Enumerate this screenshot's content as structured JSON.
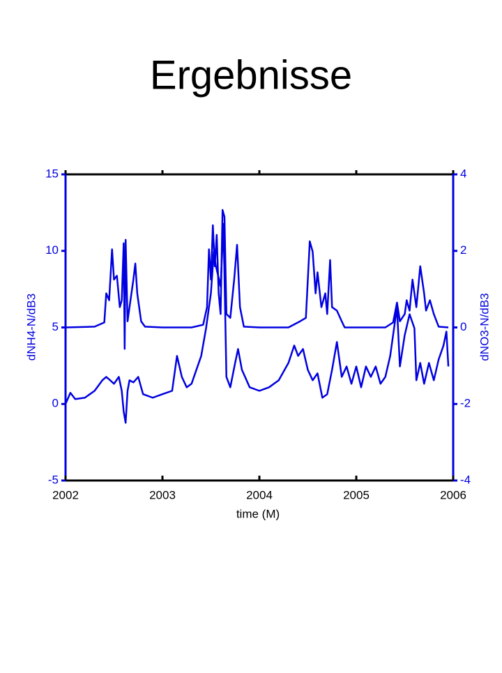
{
  "chart_data": {
    "type": "line",
    "title": "Ergebnisse",
    "xlabel": "time (M)",
    "ylabel": "dNH4-N/dB3",
    "y2label": "dNO3-N/dB3",
    "xlim": [
      2002,
      2006
    ],
    "xticks": [
      2002,
      2003,
      2004,
      2005,
      2006
    ],
    "ylim": [
      -5,
      15
    ],
    "yticks": [
      -5,
      0,
      5,
      10,
      15
    ],
    "y2lim": [
      -4,
      4
    ],
    "y2ticks": [
      -4,
      -2,
      0,
      2,
      4
    ],
    "series": [
      {
        "color": "#0000e0",
        "axis": "y2",
        "x": [
          2002.0,
          2002.3,
          2002.4,
          2002.42,
          2002.45,
          2002.48,
          2002.5,
          2002.53,
          2002.56,
          2002.58,
          2002.6,
          2002.61,
          2002.62,
          2002.64,
          2002.66,
          2002.7,
          2002.72,
          2002.74,
          2002.78,
          2002.82,
          2003.0,
          2003.3,
          2003.42,
          2003.46,
          2003.48,
          2003.5,
          2003.52,
          2003.54,
          2003.56,
          2003.58,
          2003.6,
          2003.62,
          2003.64,
          2003.66,
          2003.7,
          2003.74,
          2003.77,
          2003.8,
          2003.84,
          2004.0,
          2004.3,
          2004.42,
          2004.48,
          2004.52,
          2004.55,
          2004.58,
          2004.6,
          2004.64,
          2004.68,
          2004.7,
          2004.73,
          2004.75,
          2004.8,
          2004.85,
          2004.88,
          2005.0,
          2005.3,
          2005.38,
          2005.42,
          2005.45,
          2005.5,
          2005.52,
          2005.55,
          2005.58,
          2005.6,
          2005.62,
          2005.66,
          2005.7,
          2005.72,
          2005.76,
          2005.8,
          2005.85,
          2005.95
        ],
        "values": [
          0,
          0.02,
          0.13,
          0.89,
          0.71,
          2.04,
          1.25,
          1.35,
          0.53,
          0.71,
          2.2,
          -0.56,
          2.29,
          0.16,
          0.53,
          1.25,
          1.67,
          0.89,
          0.16,
          0.02,
          0,
          0,
          0.07,
          0.53,
          2.04,
          1.25,
          2.67,
          1.6,
          2.42,
          0.89,
          0.35,
          3.07,
          2.89,
          0.35,
          0.25,
          1.25,
          2.16,
          0.53,
          0.02,
          0,
          0,
          0.16,
          0.25,
          2.25,
          1.98,
          0.89,
          1.44,
          0.53,
          0.89,
          0.35,
          1.76,
          0.53,
          0.44,
          0.16,
          0,
          0,
          0,
          0.13,
          0.65,
          0.16,
          0.35,
          0.71,
          0.44,
          1.25,
          0.89,
          0.53,
          1.6,
          0.89,
          0.44,
          0.71,
          0.35,
          0.02,
          0
        ]
      },
      {
        "color": "#0000e0",
        "x": [
          2002.0,
          2002.05,
          2002.1,
          2002.2,
          2002.3,
          2002.38,
          2002.42,
          2002.46,
          2002.5,
          2002.55,
          2002.58,
          2002.6,
          2002.62,
          2002.64,
          2002.66,
          2002.7,
          2002.75,
          2002.8,
          2002.9,
          2003.0,
          2003.1,
          2003.15,
          2003.2,
          2003.25,
          2003.3,
          2003.35,
          2003.4,
          2003.45,
          2003.5,
          2003.53,
          2003.55,
          2003.6,
          2003.63,
          2003.66,
          2003.7,
          2003.75,
          2003.78,
          2003.82,
          2003.9,
          2004.0,
          2004.1,
          2004.2,
          2004.3,
          2004.36,
          2004.4,
          2004.45,
          2004.5,
          2004.55,
          2004.6,
          2004.65,
          2004.7,
          2004.75,
          2004.8,
          2004.85,
          2004.9,
          2004.95,
          2005.0,
          2005.05,
          2005.1,
          2005.15,
          2005.2,
          2005.25,
          2005.3,
          2005.35,
          2005.4,
          2005.42,
          2005.45,
          2005.5,
          2005.55,
          2005.6,
          2005.62,
          2005.66,
          2005.7,
          2005.75,
          2005.8,
          2005.85,
          2005.9,
          2005.93,
          2005.95
        ],
        "values": [
          0,
          0.73,
          0.32,
          0.41,
          0.86,
          1.55,
          1.77,
          1.55,
          1.32,
          1.77,
          0.86,
          -0.5,
          -1.23,
          0.86,
          1.55,
          1.41,
          1.77,
          0.64,
          0.41,
          0.64,
          0.86,
          3.14,
          1.77,
          1.09,
          1.32,
          2.23,
          3.14,
          4.95,
          7.23,
          9.95,
          9.05,
          7.68,
          11.77,
          1.77,
          1.09,
          2.68,
          3.59,
          2.23,
          1.09,
          0.86,
          1.09,
          1.55,
          2.68,
          3.82,
          3.14,
          3.59,
          2.23,
          1.55,
          2,
          0.41,
          0.64,
          2.23,
          4.05,
          1.77,
          2.45,
          1.32,
          2.45,
          1.09,
          2.45,
          1.77,
          2.45,
          1.32,
          1.77,
          3.14,
          5.41,
          6.32,
          2.45,
          4.5,
          5.86,
          4.95,
          1.55,
          2.68,
          1.32,
          2.68,
          1.55,
          2.91,
          3.82,
          4.73,
          2.45
        ]
      }
    ]
  }
}
